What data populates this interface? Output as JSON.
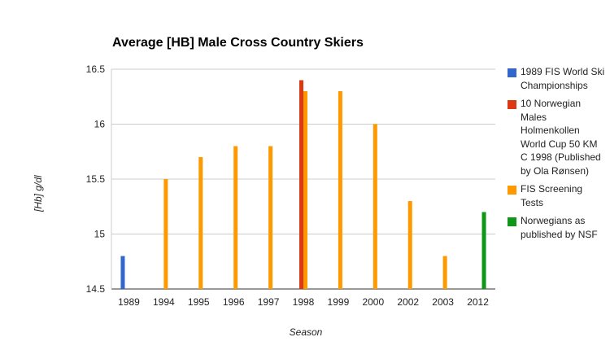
{
  "chart_data": {
    "type": "bar",
    "title": "Average [HB] Male Cross Country Skiers",
    "xlabel": "Season",
    "ylabel": "[Hb] g/dl",
    "ylim": [
      14.5,
      16.5
    ],
    "yticks": [
      "14.5",
      "15",
      "15.5",
      "16",
      "16.5"
    ],
    "grid": true,
    "legend_position": "right",
    "categories": [
      "1989",
      "1994",
      "1995",
      "1996",
      "1997",
      "1998",
      "1999",
      "2000",
      "2002",
      "2003",
      "2012"
    ],
    "series": [
      {
        "name": "1989 FIS World Ski Championships",
        "color": "#3366cc",
        "values": [
          14.8,
          null,
          null,
          null,
          null,
          null,
          null,
          null,
          null,
          null,
          null
        ]
      },
      {
        "name": "10 Norwegian Males Holmenkollen World Cup 50 KM C 1998 (Published by Ola Rønsen)",
        "color": "#dc3912",
        "values": [
          null,
          null,
          null,
          null,
          null,
          16.4,
          null,
          null,
          null,
          null,
          null
        ]
      },
      {
        "name": "FIS Screening Tests",
        "color": "#ff9900",
        "values": [
          null,
          15.5,
          15.7,
          15.8,
          15.8,
          16.3,
          16.3,
          16.0,
          15.3,
          14.8,
          null
        ]
      },
      {
        "name": "Norwegians as published by NSF",
        "color": "#109618",
        "values": [
          null,
          null,
          null,
          null,
          null,
          null,
          null,
          null,
          null,
          null,
          15.2
        ]
      }
    ]
  }
}
